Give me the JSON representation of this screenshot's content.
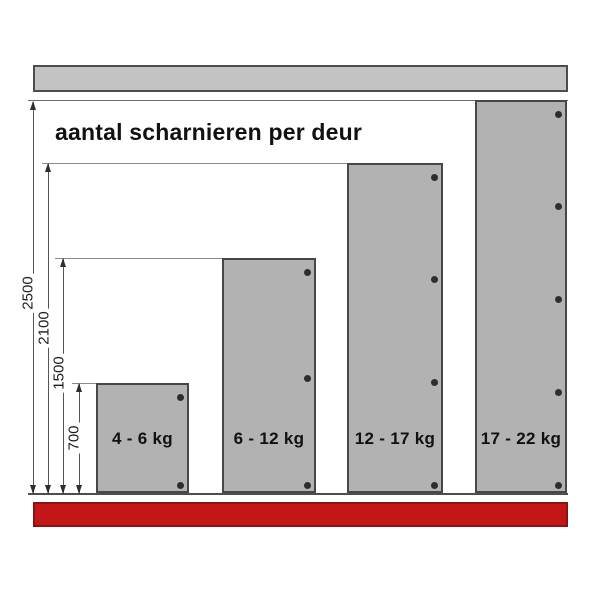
{
  "title": "aantal scharnieren per deur",
  "doors": [
    {
      "label": "4 - 6 kg",
      "height_mm": 700,
      "hinges": 2
    },
    {
      "label": "6 - 12 kg",
      "height_mm": 1500,
      "hinges": 3
    },
    {
      "label": "12 - 17 kg",
      "height_mm": 2100,
      "hinges": 4
    },
    {
      "label": "17 - 22 kg",
      "height_mm": 2500,
      "hinges": 5
    }
  ],
  "dimension_labels": [
    "2500",
    "2100",
    "1500",
    "700"
  ],
  "colors": {
    "rail_gray": "#c3c3c3",
    "door_gray": "#b2b2b2",
    "plinth_red": "#c31616",
    "dot_gray": "#2e2e2e"
  }
}
